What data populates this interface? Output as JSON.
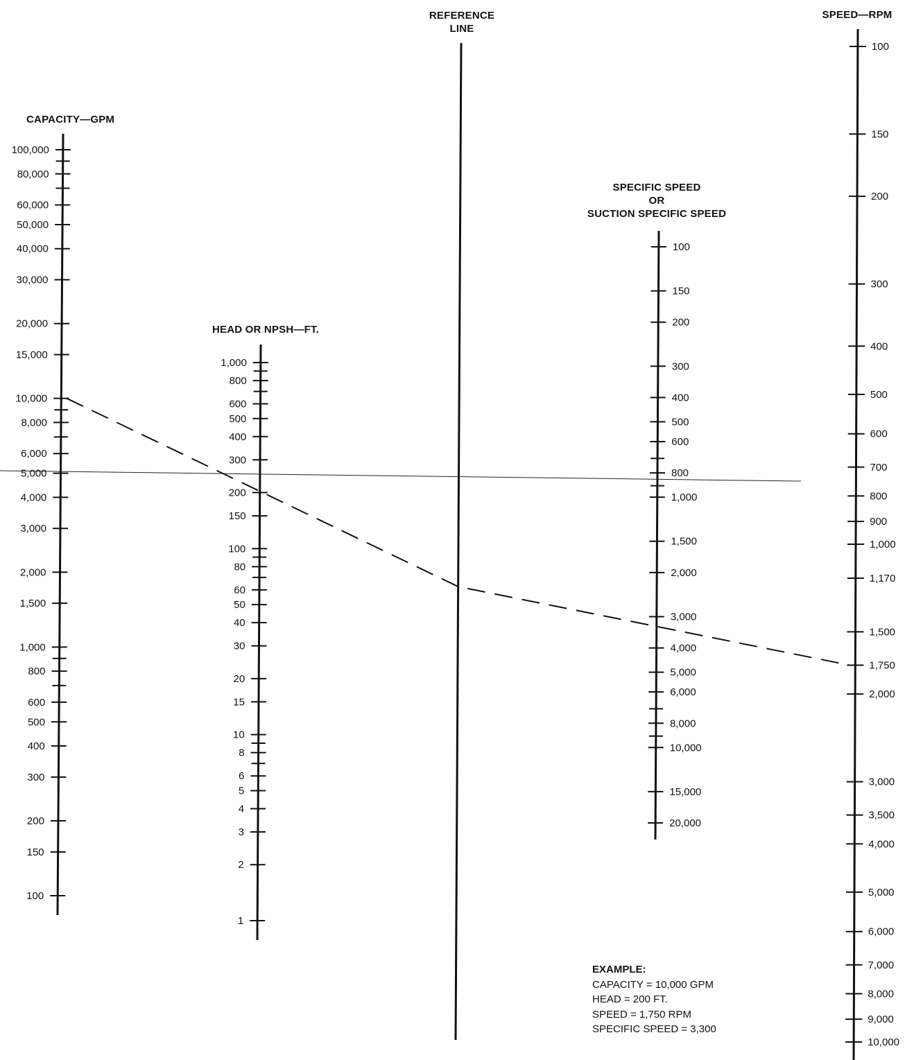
{
  "axes": {
    "capacity": {
      "title": "CAPACITY—GPM",
      "ticks": [
        {
          "v": 100000,
          "label": "100,000"
        },
        {
          "v": 90000,
          "label": ""
        },
        {
          "v": 80000,
          "label": "80,000"
        },
        {
          "v": 70000,
          "label": ""
        },
        {
          "v": 60000,
          "label": "60,000"
        },
        {
          "v": 50000,
          "label": "50,000"
        },
        {
          "v": 40000,
          "label": "40,000"
        },
        {
          "v": 30000,
          "label": "30,000"
        },
        {
          "v": 20000,
          "label": "20,000"
        },
        {
          "v": 15000,
          "label": "15,000"
        },
        {
          "v": 10000,
          "label": "10,000"
        },
        {
          "v": 9000,
          "label": ""
        },
        {
          "v": 8000,
          "label": "8,000"
        },
        {
          "v": 7000,
          "label": ""
        },
        {
          "v": 6000,
          "label": "6,000"
        },
        {
          "v": 5000,
          "label": "5,000"
        },
        {
          "v": 4000,
          "label": "4,000"
        },
        {
          "v": 3000,
          "label": "3,000"
        },
        {
          "v": 2000,
          "label": "2,000"
        },
        {
          "v": 1500,
          "label": "1,500"
        },
        {
          "v": 1000,
          "label": "1,000"
        },
        {
          "v": 900,
          "label": ""
        },
        {
          "v": 800,
          "label": "800"
        },
        {
          "v": 700,
          "label": ""
        },
        {
          "v": 600,
          "label": "600"
        },
        {
          "v": 500,
          "label": "500"
        },
        {
          "v": 400,
          "label": "400"
        },
        {
          "v": 300,
          "label": "300"
        },
        {
          "v": 200,
          "label": "200"
        },
        {
          "v": 150,
          "label": "150"
        },
        {
          "v": 100,
          "label": "100"
        }
      ]
    },
    "head": {
      "title": "HEAD OR NPSH—FT.",
      "ticks": [
        {
          "v": 1000,
          "label": "1,000"
        },
        {
          "v": 900,
          "label": ""
        },
        {
          "v": 800,
          "label": "800"
        },
        {
          "v": 700,
          "label": ""
        },
        {
          "v": 600,
          "label": "600"
        },
        {
          "v": 500,
          "label": "500"
        },
        {
          "v": 400,
          "label": "400"
        },
        {
          "v": 300,
          "label": "300"
        },
        {
          "v": 200,
          "label": "200"
        },
        {
          "v": 150,
          "label": "150"
        },
        {
          "v": 100,
          "label": "100"
        },
        {
          "v": 90,
          "label": ""
        },
        {
          "v": 80,
          "label": "80"
        },
        {
          "v": 70,
          "label": ""
        },
        {
          "v": 60,
          "label": "60"
        },
        {
          "v": 50,
          "label": "50"
        },
        {
          "v": 40,
          "label": "40"
        },
        {
          "v": 30,
          "label": "30"
        },
        {
          "v": 20,
          "label": "20"
        },
        {
          "v": 15,
          "label": "15"
        },
        {
          "v": 10,
          "label": "10"
        },
        {
          "v": 9,
          "label": ""
        },
        {
          "v": 8,
          "label": "8"
        },
        {
          "v": 7,
          "label": ""
        },
        {
          "v": 6,
          "label": "6"
        },
        {
          "v": 5,
          "label": "5"
        },
        {
          "v": 4,
          "label": "4"
        },
        {
          "v": 3,
          "label": "3"
        },
        {
          "v": 2,
          "label": "2"
        },
        {
          "v": 1,
          "label": "1"
        }
      ]
    },
    "reference": {
      "title_lines": [
        "REFERENCE",
        "LINE"
      ]
    },
    "specific_speed": {
      "title_lines": [
        "SPECIFIC SPEED",
        "OR",
        "SUCTION SPECIFIC SPEED"
      ],
      "ticks": [
        {
          "v": 100,
          "label": "100"
        },
        {
          "v": 150,
          "label": "150"
        },
        {
          "v": 200,
          "label": "200"
        },
        {
          "v": 300,
          "label": "300"
        },
        {
          "v": 400,
          "label": "400"
        },
        {
          "v": 500,
          "label": "500"
        },
        {
          "v": 600,
          "label": "600"
        },
        {
          "v": 700,
          "label": ""
        },
        {
          "v": 800,
          "label": "800"
        },
        {
          "v": 900,
          "label": ""
        },
        {
          "v": 1000,
          "label": "1,000"
        },
        {
          "v": 1500,
          "label": "1,500"
        },
        {
          "v": 2000,
          "label": "2,000"
        },
        {
          "v": 3000,
          "label": "3,000"
        },
        {
          "v": 4000,
          "label": "4,000"
        },
        {
          "v": 5000,
          "label": "5,000"
        },
        {
          "v": 6000,
          "label": "6,000"
        },
        {
          "v": 7000,
          "label": ""
        },
        {
          "v": 8000,
          "label": "8,000"
        },
        {
          "v": 9000,
          "label": ""
        },
        {
          "v": 10000,
          "label": "10,000"
        },
        {
          "v": 15000,
          "label": "15,000"
        },
        {
          "v": 20000,
          "label": "20,000"
        }
      ]
    },
    "speed": {
      "title": "SPEED—RPM",
      "ticks": [
        {
          "v": 100,
          "label": "100"
        },
        {
          "v": 150,
          "label": "150"
        },
        {
          "v": 200,
          "label": "200"
        },
        {
          "v": 300,
          "label": "300"
        },
        {
          "v": 400,
          "label": "400"
        },
        {
          "v": 500,
          "label": "500"
        },
        {
          "v": 600,
          "label": "600"
        },
        {
          "v": 700,
          "label": "700"
        },
        {
          "v": 800,
          "label": "800"
        },
        {
          "v": 900,
          "label": "900"
        },
        {
          "v": 1000,
          "label": "1,000"
        },
        {
          "v": 1170,
          "label": "1,170"
        },
        {
          "v": 1500,
          "label": "1,500"
        },
        {
          "v": 1750,
          "label": "1,750"
        },
        {
          "v": 2000,
          "label": "2,000"
        },
        {
          "v": 3000,
          "label": "3,000"
        },
        {
          "v": 3500,
          "label": "3,500"
        },
        {
          "v": 4000,
          "label": "4,000"
        },
        {
          "v": 5000,
          "label": "5,000"
        },
        {
          "v": 6000,
          "label": "6,000"
        },
        {
          "v": 7000,
          "label": "7,000"
        },
        {
          "v": 8000,
          "label": "8,000"
        },
        {
          "v": 9000,
          "label": "9,000"
        },
        {
          "v": 10000,
          "label": "10,000"
        }
      ]
    }
  },
  "example": {
    "heading": "EXAMPLE:",
    "capacity": "CAPACITY = 10,000 GPM",
    "head": "HEAD = 200 FT.",
    "speed": "SPEED = 1,750 RPM",
    "specific_speed": "SPECIFIC SPEED = 3,300"
  },
  "example_values": {
    "capacity_gpm": 10000,
    "head_ft": 200,
    "speed_rpm": 1750,
    "specific_speed": 3300
  }
}
